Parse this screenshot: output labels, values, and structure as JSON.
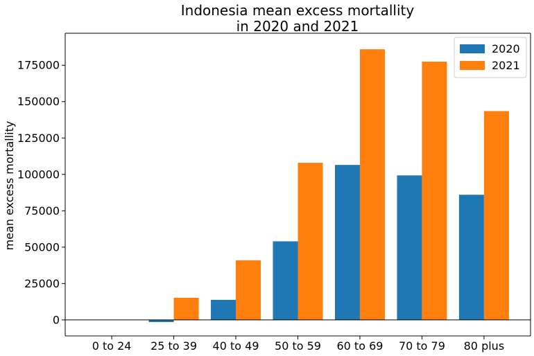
{
  "chart_data": {
    "type": "bar",
    "title_lines": [
      "Indonesia mean excess mortallity",
      "in 2020 and 2021"
    ],
    "xlabel": "",
    "ylabel": "mean excess mortallity",
    "categories": [
      "0 to 24",
      "25 to 39",
      "40 to 49",
      "50 to 59",
      "60 to 69",
      "70 to 79",
      "80 plus"
    ],
    "series": [
      {
        "name": "2020",
        "color": "#1f77b4",
        "values": [
          0,
          -1500,
          13800,
          54000,
          106500,
          99300,
          86000
        ]
      },
      {
        "name": "2021",
        "color": "#ff7f0e",
        "values": [
          0,
          15200,
          41000,
          108000,
          186000,
          177500,
          143500
        ]
      }
    ],
    "ylim": [
      -11000,
      197000
    ],
    "yticks": [
      0,
      25000,
      50000,
      75000,
      100000,
      125000,
      150000,
      175000
    ],
    "ytick_labels": [
      "0",
      "25000",
      "50000",
      "75000",
      "100000",
      "125000",
      "150000",
      "175000"
    ],
    "zero_line": true,
    "grid": false,
    "legend_position": "top-right"
  }
}
